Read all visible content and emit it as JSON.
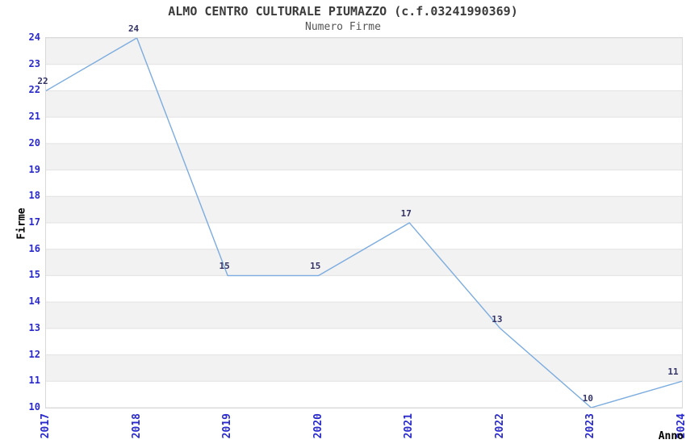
{
  "chart_data": {
    "type": "line",
    "title": "ALMO CENTRO CULTURALE PIUMAZZO (c.f.03241990369)",
    "subtitle": "Numero Firme",
    "xlabel": "Anno",
    "ylabel": "Firme",
    "categories": [
      "2017",
      "2018",
      "2019",
      "2020",
      "2021",
      "2022",
      "2023",
      "2024"
    ],
    "series": [
      {
        "name": "Numero Firme",
        "values": [
          22,
          24,
          15,
          15,
          17,
          13,
          10,
          11
        ]
      }
    ],
    "point_labels": [
      "22",
      "24",
      "15",
      "15",
      "17",
      "13",
      "10",
      "11"
    ],
    "ylim": [
      10,
      24
    ],
    "ytick_step": 1,
    "xlim_years": [
      2017,
      2024
    ],
    "grid": "horizontal",
    "banded_rows": true,
    "legend": "none",
    "markers": "none",
    "colors": {
      "line": "#7cacdf",
      "tick_label": "#2a2acc",
      "point_label": "#333366",
      "band": "#f2f2f2",
      "gridline": "#e2e2e2",
      "border": "#d9d9d9",
      "title": "#3b3b3b",
      "subtitle": "#555555",
      "axis_label": "#000000"
    }
  }
}
